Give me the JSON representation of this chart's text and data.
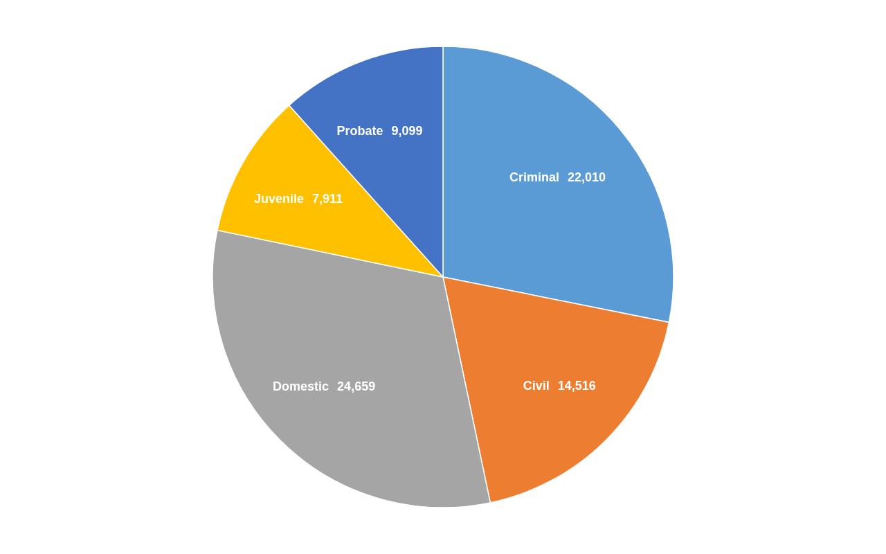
{
  "chart_data": {
    "type": "pie",
    "categories": [
      "Criminal",
      "Civil",
      "Domestic",
      "Juvenile",
      "Probate"
    ],
    "values": [
      22010,
      14516,
      24659,
      7911,
      9099
    ],
    "colors": [
      "#5b9bd5",
      "#ed7d31",
      "#a5a5a5",
      "#ffc000",
      "#4472c4"
    ],
    "value_labels": [
      "22,010",
      "14,516",
      "24,659",
      "7,911",
      "9,099"
    ],
    "legend": false
  }
}
